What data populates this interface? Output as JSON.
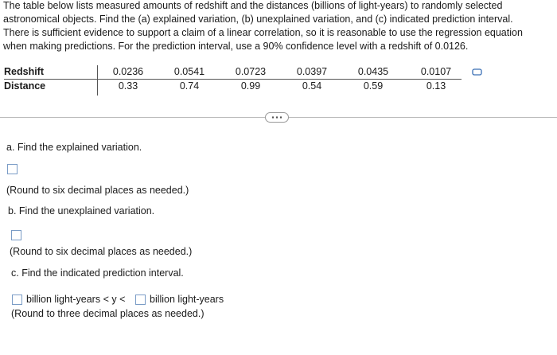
{
  "intro": {
    "lines": [
      "The table below lists measured amounts of redshift and the distances (billions of light-years) to randomly selected",
      "astronomical objects. Find the (a) explained variation, (b) unexplained variation, and (c) indicated prediction interval.",
      "There is sufficient evidence to support a claim of a linear correlation, so it is reasonable to use the regression equation",
      "when making predictions. For the prediction interval, use a 90% confidence level with a redshift of 0.0126."
    ]
  },
  "table": {
    "rows": [
      {
        "label": "Redshift",
        "values": [
          "0.0236",
          "0.0541",
          "0.0723",
          "0.0397",
          "0.0435",
          "0.0107"
        ]
      },
      {
        "label": "Distance",
        "values": [
          "0.33",
          "0.74",
          "0.99",
          "0.54",
          "0.59",
          "0.13"
        ]
      }
    ]
  },
  "questions": {
    "a": {
      "prompt": "a. Find the explained variation.",
      "note": "(Round to six decimal places as needed.)"
    },
    "b": {
      "prompt": "b. Find the unexplained variation.",
      "note": "(Round to six decimal places as needed.)"
    },
    "c": {
      "prompt": "c. Find the indicated prediction interval.",
      "middle": "billion light-years < y <",
      "end": "billion light-years",
      "note": "(Round to three decimal places as needed.)"
    }
  }
}
